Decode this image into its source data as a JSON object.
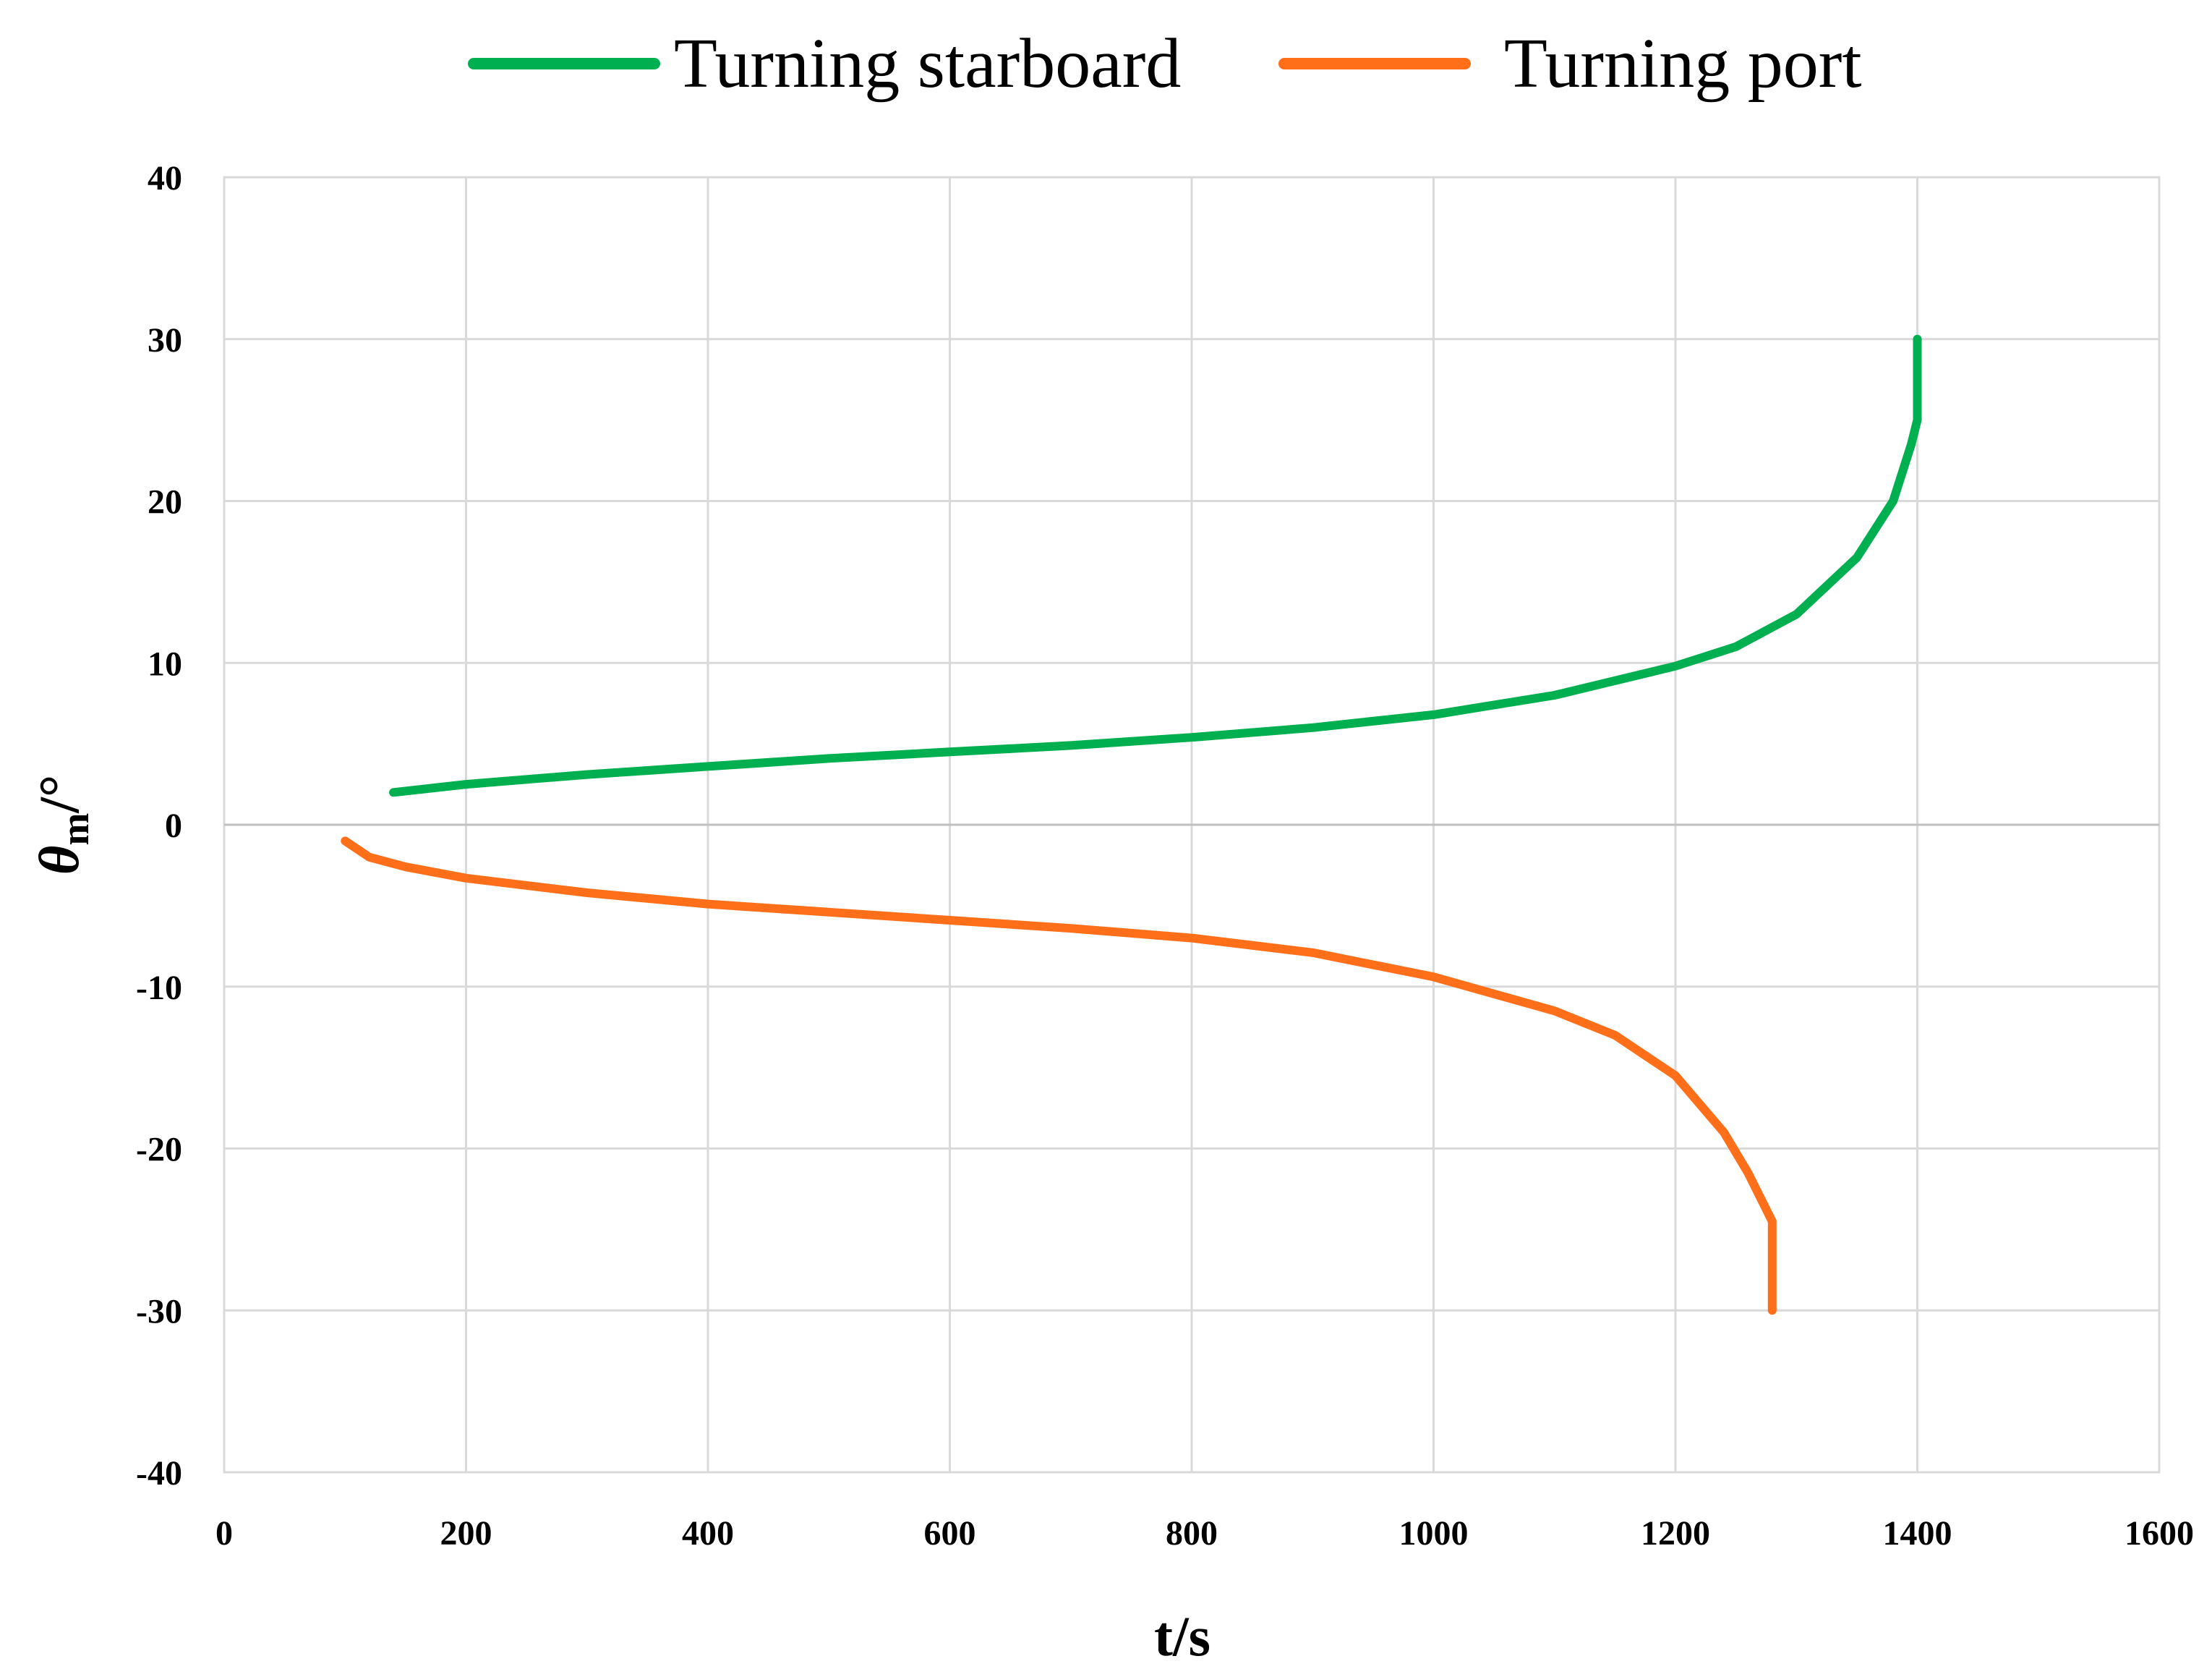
{
  "chart_data": {
    "type": "line",
    "xlabel": "t/s",
    "ylabel": {
      "symbol": "θ",
      "subscript": "m",
      "unit": "/°"
    },
    "xlim": [
      0,
      1600
    ],
    "ylim": [
      -40,
      40
    ],
    "x_ticks": [
      0,
      200,
      400,
      600,
      800,
      1000,
      1200,
      1400,
      1600
    ],
    "y_ticks": [
      40,
      30,
      20,
      10,
      0,
      -10,
      -20,
      -30,
      -40
    ],
    "grid": true,
    "legend_position": "top",
    "series": [
      {
        "name": "Turning starboard",
        "color": "#00B050",
        "points": [
          [
            140,
            2.0
          ],
          [
            200,
            2.5
          ],
          [
            300,
            3.1
          ],
          [
            400,
            3.6
          ],
          [
            500,
            4.1
          ],
          [
            600,
            4.5
          ],
          [
            700,
            4.9
          ],
          [
            800,
            5.4
          ],
          [
            900,
            6.0
          ],
          [
            1000,
            6.8
          ],
          [
            1100,
            8.0
          ],
          [
            1200,
            9.8
          ],
          [
            1250,
            11.0
          ],
          [
            1300,
            13.0
          ],
          [
            1350,
            16.5
          ],
          [
            1380,
            20.0
          ],
          [
            1395,
            23.5
          ],
          [
            1400,
            25.0
          ],
          [
            1400,
            30.0
          ]
        ]
      },
      {
        "name": "Turning port",
        "color": "#FF6F1A",
        "points": [
          [
            100,
            -1.0
          ],
          [
            120,
            -2.0
          ],
          [
            150,
            -2.6
          ],
          [
            200,
            -3.3
          ],
          [
            300,
            -4.2
          ],
          [
            400,
            -4.9
          ],
          [
            500,
            -5.4
          ],
          [
            600,
            -5.9
          ],
          [
            700,
            -6.4
          ],
          [
            800,
            -7.0
          ],
          [
            900,
            -7.9
          ],
          [
            1000,
            -9.4
          ],
          [
            1100,
            -11.5
          ],
          [
            1150,
            -13.0
          ],
          [
            1200,
            -15.5
          ],
          [
            1240,
            -19.0
          ],
          [
            1260,
            -21.5
          ],
          [
            1280,
            -24.5
          ],
          [
            1280,
            -30.0
          ]
        ]
      }
    ]
  }
}
